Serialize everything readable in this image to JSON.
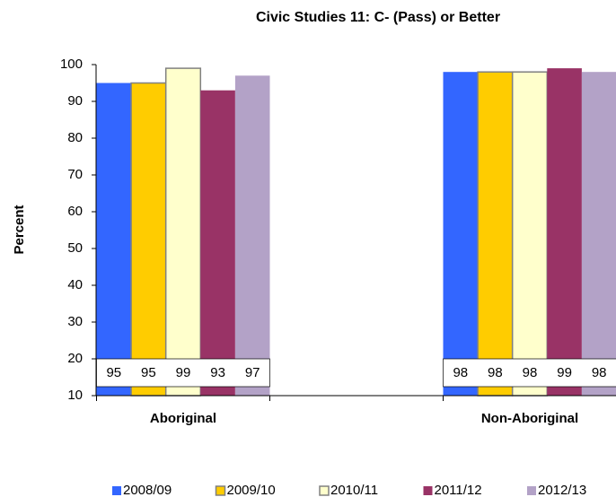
{
  "chart_data": {
    "type": "bar",
    "title": "Civic Studies 11: C- (Pass) or Better",
    "ylabel": "Percent",
    "categories": [
      "Aboriginal",
      "Non-Aboriginal"
    ],
    "series": [
      {
        "name": "2008/09",
        "color": "#3366ff",
        "values": [
          95,
          98
        ]
      },
      {
        "name": "2009/10",
        "color": "#ffcc00",
        "values": [
          95,
          98
        ]
      },
      {
        "name": "2010/11",
        "color": "#ffffcc",
        "values": [
          99,
          98
        ]
      },
      {
        "name": "2011/12",
        "color": "#993366",
        "values": [
          93,
          99
        ]
      },
      {
        "name": "2012/13",
        "color": "#b3a2c7",
        "values": [
          97,
          98
        ]
      }
    ],
    "ylim": [
      10,
      100
    ],
    "yticks": [
      10,
      20,
      30,
      40,
      50,
      60,
      70,
      80,
      90,
      100
    ],
    "legend": "bottom"
  }
}
